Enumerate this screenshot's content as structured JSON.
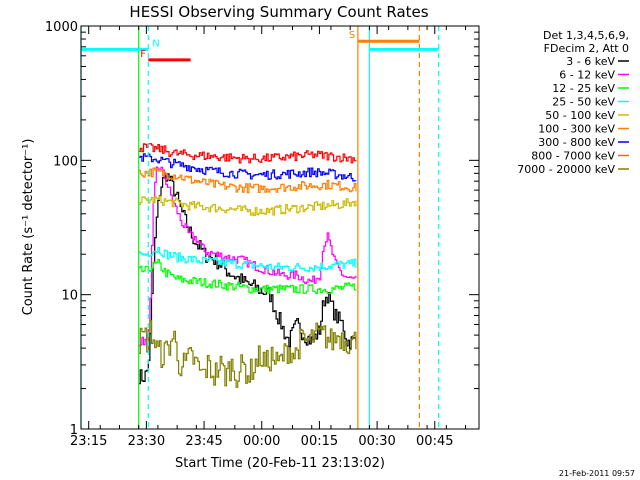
{
  "chart_data": {
    "type": "line",
    "title": "HESSI Observing Summary Count Rates",
    "xlabel": "Start Time (20-Feb-11 23:13:02)",
    "ylabel": "Count Rate (s⁻¹ detector⁻¹)",
    "yscale": "log",
    "ylim": [
      1,
      1000
    ],
    "xlim_minutes": [
      0,
      103.5
    ],
    "xticks": [
      {
        "t": 2,
        "label": "23:15"
      },
      {
        "t": 17,
        "label": "23:30"
      },
      {
        "t": 32,
        "label": "23:45"
      },
      {
        "t": 47,
        "label": "00:00"
      },
      {
        "t": 62,
        "label": "00:15"
      },
      {
        "t": 77,
        "label": "00:30"
      },
      {
        "t": 92,
        "label": "00:45"
      }
    ],
    "yticks": [
      {
        "v": 1,
        "label": "1"
      },
      {
        "v": 10,
        "label": "10"
      },
      {
        "v": 100,
        "label": "100"
      },
      {
        "v": 1000,
        "label": "1000"
      }
    ],
    "legend": {
      "placement": "right",
      "header": [
        "Det 1,3,4,5,6,9,",
        "FDecim 2, Att 0"
      ]
    },
    "series": [
      {
        "name": "3 - 6 keV",
        "color": "#000000",
        "t": [
          15,
          16,
          17,
          17.8,
          18.6,
          19.5,
          20.5,
          22,
          24,
          26,
          28,
          30,
          32,
          35,
          38,
          42,
          46,
          49,
          50.5,
          52,
          53,
          54,
          56,
          58,
          60,
          62,
          63,
          64,
          66,
          68,
          69,
          70,
          71.5
        ],
        "values": [
          2.5,
          2.4,
          2.6,
          4,
          15,
          35,
          62,
          80,
          62,
          42,
          30,
          24,
          20,
          18,
          15,
          12.5,
          11,
          10,
          7.5,
          6,
          5,
          4.5,
          6,
          5,
          4.5,
          5.5,
          9,
          10,
          7,
          6,
          4.5,
          4.5,
          4.5
        ]
      },
      {
        "name": "6 - 12 keV",
        "color": "#ff00ff",
        "t": [
          15,
          17,
          17.8,
          18.6,
          19.5,
          20.5,
          22,
          24,
          26,
          28,
          30,
          32,
          35,
          38,
          42,
          46,
          49,
          52,
          56,
          58,
          60,
          62,
          63,
          64,
          66,
          68,
          70,
          71.5
        ],
        "values": [
          4.5,
          4.5,
          7,
          40,
          85,
          90,
          70,
          48,
          35,
          28,
          26,
          21,
          20,
          19,
          18,
          16,
          15,
          14,
          14,
          13,
          12.5,
          14,
          24,
          27,
          17,
          14,
          13,
          13
        ]
      },
      {
        "name": "12 - 25 keV",
        "color": "#00ff00",
        "t": [
          15,
          17,
          18,
          20,
          22,
          25,
          30,
          35,
          40,
          45,
          50,
          55,
          60,
          65,
          71.5
        ],
        "values": [
          15,
          15,
          16,
          17,
          14.5,
          13,
          12.5,
          12,
          11.5,
          11,
          11,
          11,
          11,
          11,
          11.5
        ]
      },
      {
        "name": "25 - 50 keV",
        "color": "#00ffff",
        "t": [
          15,
          17,
          18,
          20,
          22,
          25,
          30,
          35,
          40,
          45,
          50,
          55,
          60,
          65,
          71.5
        ],
        "values": [
          20,
          20,
          21,
          22,
          20,
          19,
          18,
          17.5,
          17,
          16.5,
          16,
          16,
          16,
          16.5,
          17
        ]
      },
      {
        "name": "50 - 100 keV",
        "color": "#ccbb00",
        "t": [
          15,
          17,
          19,
          21,
          23,
          25,
          28,
          32,
          36,
          40,
          44,
          48,
          52,
          56,
          60,
          64,
          68,
          71.5
        ],
        "values": [
          50,
          50,
          51,
          50,
          49,
          48,
          46,
          45,
          44,
          43,
          42,
          42,
          43,
          44,
          45,
          46,
          47,
          50
        ]
      },
      {
        "name": "100 - 300 keV",
        "color": "#ff7f00",
        "t": [
          15,
          17,
          19,
          21,
          23,
          25,
          28,
          32,
          36,
          40,
          44,
          48,
          52,
          56,
          60,
          64,
          68,
          71.5
        ],
        "values": [
          80,
          81,
          82,
          80,
          78,
          77,
          72,
          68,
          65,
          63,
          62,
          62,
          63,
          64,
          65,
          66,
          64,
          62
        ]
      },
      {
        "name": "300 - 800 keV",
        "color": "#0000ff",
        "t": [
          15,
          17,
          19,
          21,
          23,
          25,
          28,
          32,
          36,
          40,
          44,
          48,
          52,
          56,
          60,
          64,
          68,
          71.5
        ],
        "values": [
          105,
          104,
          103,
          100,
          96,
          93,
          90,
          85,
          82,
          80,
          78,
          78,
          79,
          80,
          82,
          80,
          77,
          74
        ]
      },
      {
        "name": "800 - 7000 keV",
        "color": "#cc7a00",
        "t": [],
        "values": []
      },
      {
        "name": "7000 - 20000 keV",
        "color": "#808000",
        "t": [
          15,
          16.5,
          17,
          18,
          19.5,
          21,
          22.5,
          24,
          25.5,
          27,
          28.5,
          30,
          31.5,
          33,
          34.5,
          36,
          37.5,
          39,
          40.5,
          42,
          43.5,
          45,
          46.5,
          48,
          49.5,
          51,
          52.5,
          54,
          55.5,
          57,
          59,
          61,
          63,
          65,
          67,
          69,
          71.5
        ],
        "values": [
          4.5,
          5,
          4.5,
          5.5,
          4,
          3.5,
          4,
          5,
          3,
          3,
          3.5,
          3,
          2.5,
          3,
          2.5,
          3,
          2.5,
          3,
          2.5,
          3,
          2.5,
          3,
          3.5,
          3,
          3.5,
          3,
          3.5,
          4,
          3.5,
          4.5,
          4.5,
          5,
          5,
          4.5,
          5,
          4.5,
          4.5
        ]
      },
      {
        "name": "",
        "color": "#ff0000",
        "t": [
          15,
          17,
          19,
          21,
          23,
          25,
          28,
          32,
          36,
          40,
          44,
          48,
          52,
          56,
          60,
          64,
          68,
          71.5
        ],
        "values": [
          125,
          124,
          122,
          120,
          115,
          112,
          110,
          108,
          106,
          104,
          103,
          103,
          105,
          107,
          110,
          108,
          105,
          103
        ]
      }
    ],
    "top_flags": [
      {
        "label": "N",
        "color": "#00ffff",
        "t0": 0,
        "t1": 17.5,
        "value": 670
      },
      {
        "label": "F",
        "color": "#ff0000",
        "t0": 17.5,
        "t1": 28.5,
        "value": 560
      },
      {
        "label": "S",
        "color": "#ff7f00",
        "t0": 72,
        "t1": 88,
        "value": 770
      },
      {
        "label": "",
        "color": "#00ffff",
        "t0": 75,
        "t1": 93,
        "value": 670
      }
    ],
    "vlines": [
      {
        "t": 0,
        "color": "#00ffff",
        "style": "solid"
      },
      {
        "t": 15,
        "color": "#00ff00",
        "style": "solid"
      },
      {
        "t": 17.5,
        "color": "#00ffff",
        "style": "dashed"
      },
      {
        "t": 72,
        "color": "#ff7f00",
        "style": "solid"
      },
      {
        "t": 75,
        "color": "#00ffff",
        "style": "solid"
      },
      {
        "t": 88,
        "color": "#ff7f00",
        "style": "dashed"
      },
      {
        "t": 93,
        "color": "#00ffff",
        "style": "dashed"
      }
    ],
    "footer_date": "21-Feb-2011 09:57"
  }
}
